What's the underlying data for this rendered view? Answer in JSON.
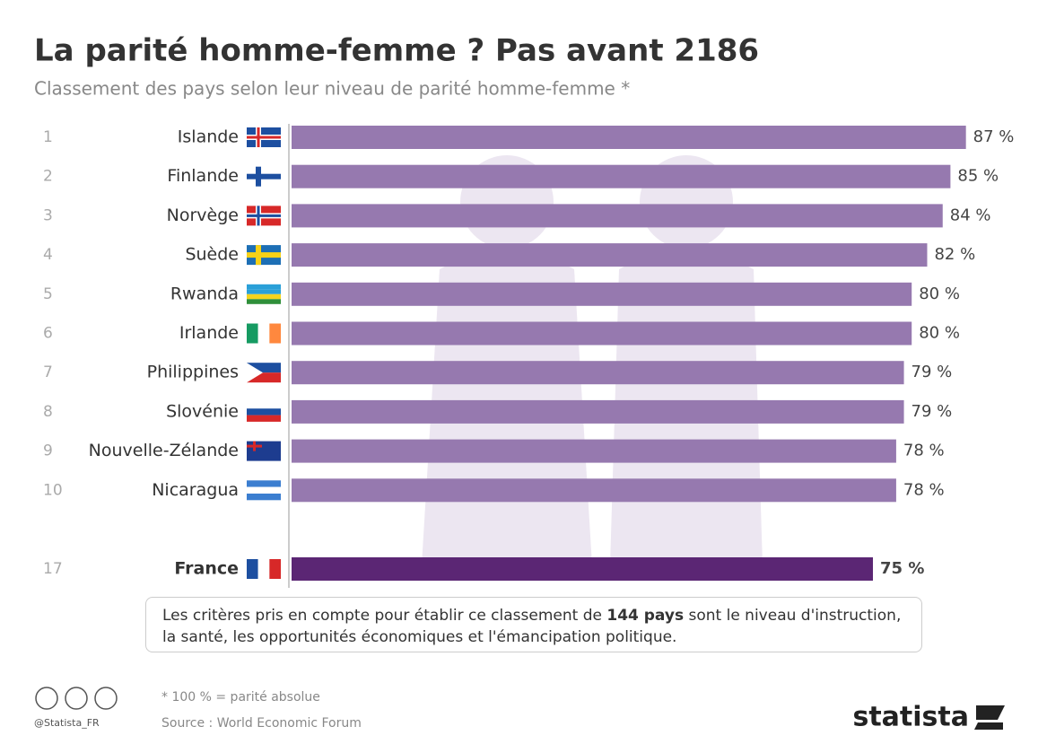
{
  "chart_data": {
    "type": "bar",
    "title": "La parité homme-femme ? Pas avant 2186",
    "subtitle": "Classement des pays selon leur niveau de parité homme-femme *",
    "ranks": [
      1,
      2,
      3,
      4,
      5,
      6,
      7,
      8,
      9,
      10,
      17
    ],
    "categories": [
      "Islande",
      "Finlande",
      "Norvège",
      "Suède",
      "Rwanda",
      "Irlande",
      "Philippines",
      "Slovénie",
      "Nouvelle-Zélande",
      "Nicaragua",
      "France"
    ],
    "values": [
      87,
      85,
      84,
      82,
      80,
      80,
      79,
      79,
      78,
      78,
      75
    ],
    "value_labels": [
      "87 %",
      "85 %",
      "84 %",
      "82 %",
      "80 %",
      "80 %",
      "79 %",
      "79 %",
      "78 %",
      "78 %",
      "75 %"
    ],
    "colors": [
      "#9679af",
      "#9679af",
      "#9679af",
      "#9679af",
      "#9679af",
      "#9679af",
      "#9679af",
      "#9679af",
      "#9679af",
      "#9679af",
      "#5b2674"
    ],
    "note": [
      "Les critères pris en compte pour établir ce classement de ",
      "144 pays",
      " sont le niveau d'instruction, la santé, les opportunités économiques et l'émancipation politique."
    ],
    "footnote": "* 100 % = parité absolue",
    "source": "Source : World Economic Forum",
    "handle": "@Statista_FR",
    "brand": "statista"
  }
}
